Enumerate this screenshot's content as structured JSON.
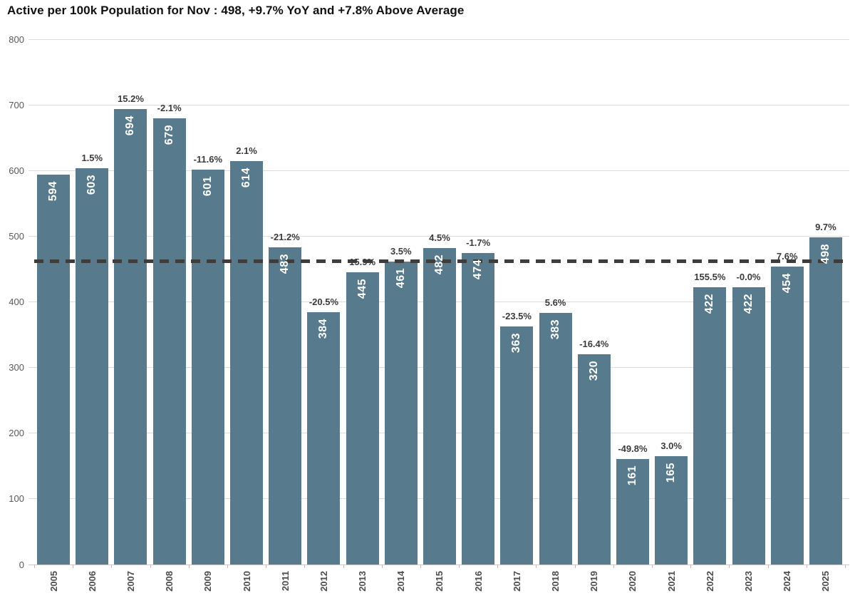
{
  "title": "Active per 100k Population for Nov : 498, +9.7% YoY and +7.8% Above Average",
  "colors": {
    "bar": "#577a8d",
    "bar_value_label": "#ffffff",
    "pct_label": "#3b3b3b",
    "average_line": "#3d3d3d",
    "gridline": "#dcdcdc",
    "y_tick_label": "#595959",
    "x_tick_label": "#4d4d4d",
    "title": "#111111"
  },
  "chart_data": {
    "type": "bar",
    "title": "Active per 100k Population for Nov : 498, +9.7% YoY and +7.8% Above Average",
    "xlabel": "",
    "ylabel": "",
    "categories": [
      "2005",
      "2006",
      "2007",
      "2008",
      "2009",
      "2010",
      "2011",
      "2012",
      "2013",
      "2014",
      "2015",
      "2016",
      "2017",
      "2018",
      "2019",
      "2020",
      "2021",
      "2022",
      "2023",
      "2024",
      "2025"
    ],
    "values": [
      594,
      603,
      694,
      679,
      601,
      614,
      483,
      384,
      445,
      461,
      482,
      474,
      363,
      383,
      320,
      161,
      165,
      422,
      422,
      454,
      498
    ],
    "bar_labels": [
      "594",
      "603",
      "694",
      "679",
      "601",
      "614",
      "483",
      "384",
      "445",
      "461",
      "482",
      "474",
      "363",
      "383",
      "320",
      "161",
      "165",
      "422",
      "422",
      "454",
      "498"
    ],
    "pct_labels": [
      "",
      "1.5%",
      "15.2%",
      "-2.1%",
      "-11.6%",
      "2.1%",
      "-21.2%",
      "-20.5%",
      "15.9%",
      "3.5%",
      "4.5%",
      "-1.7%",
      "-23.5%",
      "5.6%",
      "-16.4%",
      "-49.8%",
      "3.0%",
      "155.5%",
      "-0.0%",
      "7.6%",
      "9.7%"
    ],
    "ylim": [
      0,
      800
    ],
    "yticks": [
      0,
      100,
      200,
      300,
      400,
      500,
      600,
      700,
      800
    ],
    "ytick_labels": [
      "0",
      "100",
      "200",
      "300",
      "400",
      "500",
      "600",
      "700",
      "800"
    ],
    "average_line_value": 462,
    "grid": true,
    "legend": false
  }
}
